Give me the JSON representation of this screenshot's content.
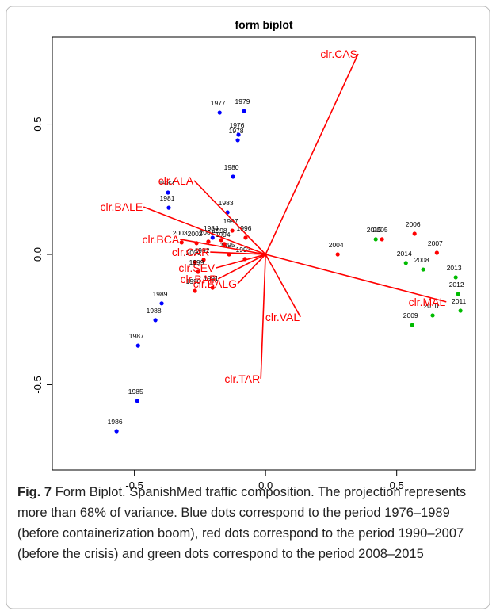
{
  "chart_data": {
    "type": "scatter",
    "title": "form biplot",
    "xlim": [
      -0.813,
      0.8
    ],
    "ylim": [
      -0.827,
      0.833
    ],
    "xticks": [
      -0.5,
      {
        "value": 0,
        "label": "0.0"
      },
      0.5
    ],
    "yticks": [
      -0.5,
      {
        "value": 0,
        "label": "0.0"
      },
      0.5
    ],
    "series": [
      {
        "color": "#0000ff",
        "labels": [
          "1977",
          "1979",
          "1976",
          "1978",
          "1980",
          "1982",
          "1981",
          "1983",
          "1984",
          "1988",
          "1989",
          "1987",
          "1985",
          "1986"
        ],
        "x": [
          -0.175,
          -0.082,
          -0.103,
          -0.106,
          -0.124,
          -0.372,
          -0.369,
          -0.145,
          -0.202,
          -0.42,
          -0.396,
          -0.486,
          -0.489,
          -0.568
        ],
        "values": [
          0.544,
          0.55,
          0.459,
          0.438,
          0.298,
          0.237,
          0.179,
          0.161,
          0.064,
          -0.252,
          -0.188,
          -0.35,
          -0.562,
          -0.678
        ]
      },
      {
        "color": "#ff0000",
        "labels": [
          "1990",
          "1991",
          "1992",
          "2000",
          "2003",
          "2002",
          "2001",
          "1993",
          "1995",
          "1996",
          "1997",
          "1998",
          "1999",
          "1994",
          "2004",
          "2005",
          "2006",
          "2007"
        ],
        "x": [
          -0.269,
          -0.202,
          -0.236,
          -0.269,
          -0.32,
          -0.263,
          -0.218,
          -0.079,
          -0.139,
          -0.076,
          -0.127,
          -0.169,
          -0.257,
          -0.157,
          0.275,
          0.444,
          0.568,
          0.653
        ],
        "values": [
          -0.14,
          -0.128,
          -0.021,
          -0.03,
          0.046,
          0.043,
          0.049,
          -0.018,
          0.0,
          0.064,
          0.091,
          0.055,
          -0.067,
          0.04,
          0.0,
          0.058,
          0.079,
          0.006
        ]
      },
      {
        "color": "#00bb00",
        "labels": [
          "2008",
          "2009",
          "2010",
          "2011",
          "2012",
          "2013",
          "2014",
          "2015"
        ],
        "x": [
          0.601,
          0.559,
          0.637,
          0.743,
          0.734,
          0.725,
          0.535,
          0.42
        ],
        "values": [
          -0.058,
          -0.271,
          -0.234,
          -0.216,
          -0.152,
          -0.088,
          -0.033,
          0.058
        ]
      }
    ],
    "vectors": {
      "color": "#ff0000",
      "labels": [
        "clr.CAS",
        "clr.BALE",
        "clr.ALA",
        "clr.BCA",
        "clr.CAR",
        "clr.SEV",
        "clr.BAR",
        "clr.BALG",
        "clr.VAL",
        "clr.TAR",
        "clr.MAL"
      ],
      "x": [
        0.353,
        -0.465,
        -0.272,
        -0.326,
        -0.211,
        -0.19,
        -0.181,
        -0.106,
        0.133,
        -0.018,
        0.689
      ],
      "values": [
        0.769,
        0.182,
        0.283,
        0.058,
        0.009,
        -0.052,
        -0.094,
        -0.112,
        -0.24,
        -0.477,
        -0.182
      ]
    }
  },
  "caption": {
    "label": "Fig. 7",
    "text": "Form Biplot. SpanishMed traffic composition. The projection represents more than 68% of variance. Blue dots correspond to the period 1976–1989 (before containerization boom), red dots correspond to the period 1990–2007 (before the crisis) and green dots correspond to the period 2008–2015"
  }
}
